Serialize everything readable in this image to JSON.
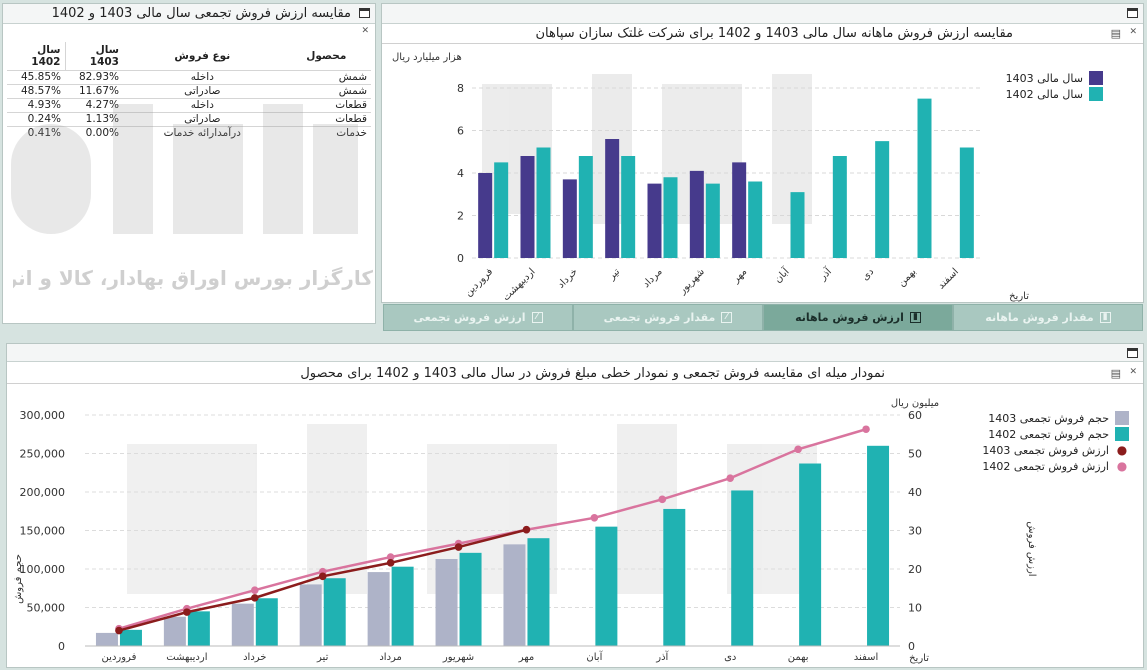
{
  "top_left": {
    "title": "مقایسه ارزش فروش تجمعی سال مالی 1403 و 1402",
    "headers": [
      "محصول",
      "نوع فروش",
      "سال 1403",
      "سال 1402"
    ],
    "rows": [
      {
        "product": "شمش",
        "type": "داخله",
        "y1403": "82.93%",
        "y1402": "45.85%"
      },
      {
        "product": "شمش",
        "type": "صادراتی",
        "y1403": "11.67%",
        "y1402": "48.57%"
      },
      {
        "product": "قطعات",
        "type": "داخله",
        "y1403": "4.27%",
        "y1402": "4.93%"
      },
      {
        "product": "قطعات",
        "type": "صادراتی",
        "y1403": "1.13%",
        "y1402": "0.24%"
      },
      {
        "product": "خدمات",
        "type": "درآمدارائه خدمات",
        "y1403": "0.00%",
        "y1402": "0.41%"
      }
    ],
    "watermark": "کارگزار بورس اوراق بهادار، کالا و انرژی"
  },
  "top_right": {
    "title": "مقایسه ارزش فروش ماهانه سال مالی 1403 و 1402 برای شرکت غلتک سازان سپاهان",
    "tabs": [
      {
        "label": "مقدار فروش ماهانه",
        "active": false
      },
      {
        "label": "ارزش فروش ماهانه",
        "active": true
      },
      {
        "label": "مقدار فروش تجمعی",
        "active": false
      },
      {
        "label": "ارزش فروش تجمعی",
        "active": false
      }
    ]
  },
  "bottom": {
    "title": "نمودار میله ای مقایسه فروش تجمعی و نمودار خطی مبلغ فروش در سال مالی 1403 و 1402 برای محصول"
  },
  "colors": {
    "c1403": "#463a8c",
    "c1402": "#20b2b2",
    "vol1403": "#aeb3c8",
    "val1403": "#8b1c1c",
    "val1402": "#d9749e"
  },
  "chart_data": [
    {
      "type": "bar",
      "title": "مقایسه ارزش فروش ماهانه سال مالی 1403 و 1402 برای شرکت غلتک سازان سپاهان",
      "ylabel": "هزار میلیارد ریال",
      "xlabel": "تاریخ",
      "ylim": [
        0,
        8
      ],
      "yticks": [
        0,
        2,
        4,
        6,
        8
      ],
      "grid": true,
      "legend_position": "top-right",
      "categories": [
        "فروردین",
        "اردیبهشت",
        "خرداد",
        "تیر",
        "مرداد",
        "شهریور",
        "مهر",
        "آبان",
        "آذر",
        "دی",
        "بهمن",
        "اسفند"
      ],
      "series": [
        {
          "name": "سال مالی 1403",
          "color": "#463a8c",
          "values": [
            4.0,
            4.8,
            3.7,
            5.6,
            3.5,
            4.1,
            4.5,
            null,
            null,
            null,
            null,
            null
          ]
        },
        {
          "name": "سال مالی 1402",
          "color": "#20b2b2",
          "values": [
            4.5,
            5.2,
            4.8,
            4.8,
            3.8,
            3.5,
            3.6,
            3.1,
            4.8,
            5.5,
            7.5,
            5.2
          ]
        }
      ]
    },
    {
      "type": "bar",
      "title": "نمودار میله ای مقایسه فروش تجمعی و نمودار خطی مبلغ فروش در سال مالی 1403 و 1402 برای محصول",
      "ylabel": "حجم فروش",
      "ylabel_right": "ارزش فروش",
      "ylabel_right_unit": "میلیون ریال",
      "xlabel": "تاریخ",
      "ylim": [
        0,
        300000
      ],
      "yticks": [
        "0",
        "50,000",
        "100,000",
        "150,000",
        "200,000",
        "250,000",
        "300,000"
      ],
      "ylim_right": [
        0,
        60
      ],
      "yticks_right": [
        0,
        10,
        20,
        30,
        40,
        50,
        60
      ],
      "grid": true,
      "legend_position": "top-right",
      "categories": [
        "فروردین",
        "اردیبهشت",
        "خرداد",
        "تیر",
        "مرداد",
        "شهریور",
        "مهر",
        "آبان",
        "آذر",
        "دی",
        "بهمن",
        "اسفند"
      ],
      "bar_series": [
        {
          "name": "حجم فروش تجمعی 1403",
          "color": "#aeb3c8",
          "values": [
            17000,
            38000,
            55000,
            80000,
            96000,
            113000,
            132000,
            null,
            null,
            null,
            null,
            null
          ]
        },
        {
          "name": "حجم فروش تجمعی 1402",
          "color": "#20b2b2",
          "values": [
            21000,
            45000,
            62000,
            88000,
            103000,
            121000,
            140000,
            155000,
            178000,
            202000,
            237000,
            260000
          ]
        }
      ],
      "line_series": [
        {
          "name": "ارزش فروش تجمعی 1403",
          "color": "#8b1c1c",
          "values": [
            4.0,
            8.8,
            12.5,
            18.1,
            21.6,
            25.7,
            30.2,
            null,
            null,
            null,
            null,
            null
          ]
        },
        {
          "name": "ارزش فروش تجمعی 1402",
          "color": "#d9749e",
          "values": [
            4.5,
            9.7,
            14.5,
            19.3,
            23.1,
            26.6,
            30.2,
            33.3,
            38.1,
            43.6,
            51.1,
            56.3
          ]
        }
      ]
    }
  ]
}
